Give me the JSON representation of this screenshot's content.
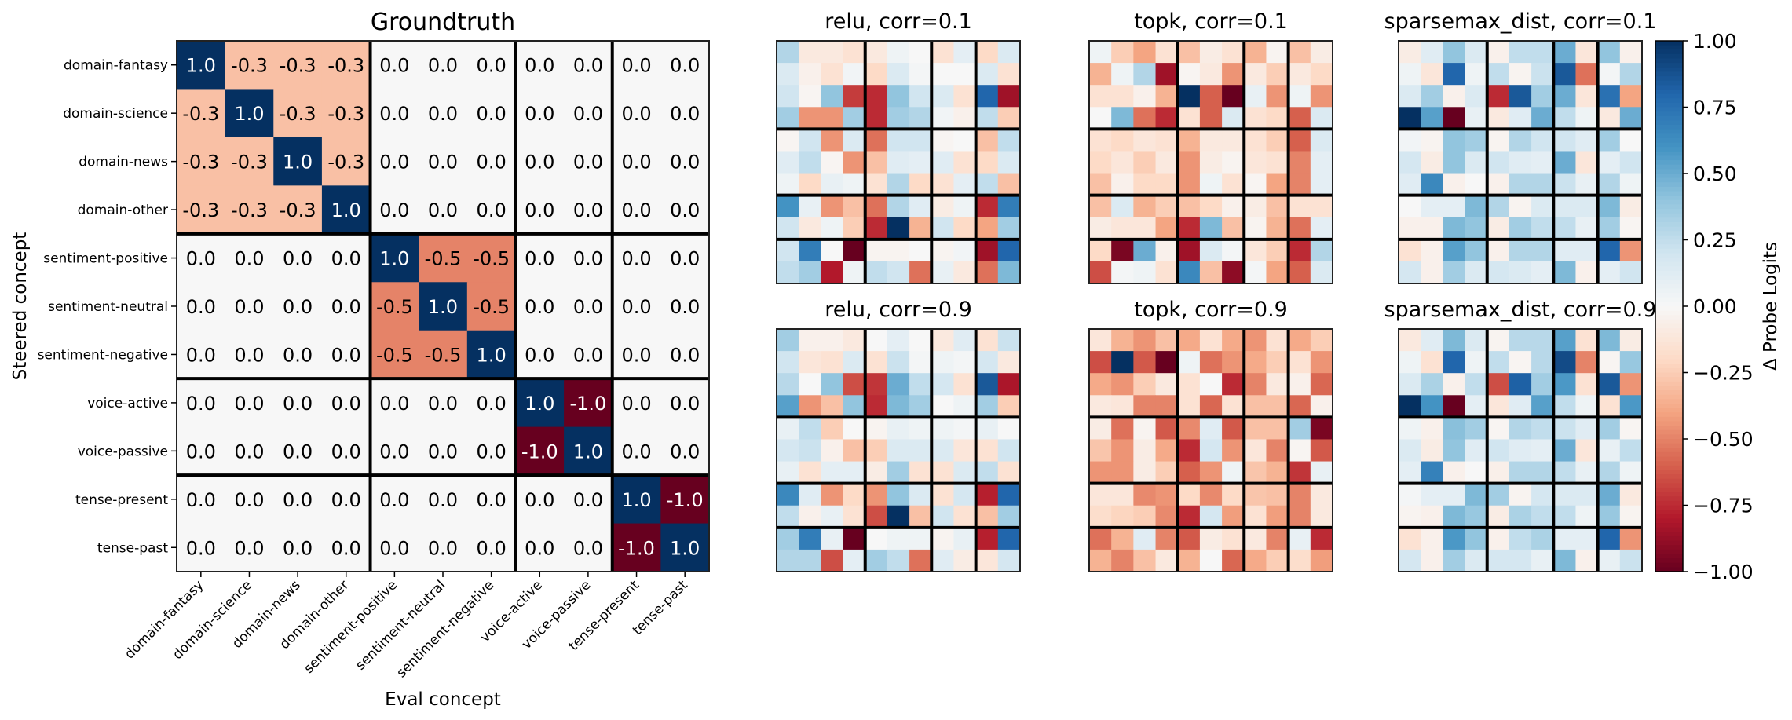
{
  "chart_data": {
    "type": "heatmap",
    "colormap": "RdBu",
    "value_range": [
      -1.0,
      1.0
    ],
    "concepts": [
      "domain-fantasy",
      "domain-science",
      "domain-news",
      "domain-other",
      "sentiment-positive",
      "sentiment-neutral",
      "sentiment-negative",
      "voice-active",
      "voice-passive",
      "tense-present",
      "tense-past"
    ],
    "group_boundaries_after": [
      3,
      6,
      8
    ],
    "groundtruth": {
      "title": "Groundtruth",
      "xlabel": "Eval concept",
      "ylabel": "Steered concept",
      "values": [
        [
          1.0,
          -0.3,
          -0.3,
          -0.3,
          0.0,
          0.0,
          0.0,
          0.0,
          0.0,
          0.0,
          0.0
        ],
        [
          -0.3,
          1.0,
          -0.3,
          -0.3,
          0.0,
          0.0,
          0.0,
          0.0,
          0.0,
          0.0,
          0.0
        ],
        [
          -0.3,
          -0.3,
          1.0,
          -0.3,
          0.0,
          0.0,
          0.0,
          0.0,
          0.0,
          0.0,
          0.0
        ],
        [
          -0.3,
          -0.3,
          -0.3,
          1.0,
          0.0,
          0.0,
          0.0,
          0.0,
          0.0,
          0.0,
          0.0
        ],
        [
          0.0,
          0.0,
          0.0,
          0.0,
          1.0,
          -0.5,
          -0.5,
          0.0,
          0.0,
          0.0,
          0.0
        ],
        [
          0.0,
          0.0,
          0.0,
          0.0,
          -0.5,
          1.0,
          -0.5,
          0.0,
          0.0,
          0.0,
          0.0
        ],
        [
          0.0,
          0.0,
          0.0,
          0.0,
          -0.5,
          -0.5,
          1.0,
          0.0,
          0.0,
          0.0,
          0.0
        ],
        [
          0.0,
          0.0,
          0.0,
          0.0,
          0.0,
          0.0,
          0.0,
          1.0,
          -1.0,
          0.0,
          0.0
        ],
        [
          0.0,
          0.0,
          0.0,
          0.0,
          0.0,
          0.0,
          0.0,
          -1.0,
          1.0,
          0.0,
          0.0
        ],
        [
          0.0,
          0.0,
          0.0,
          0.0,
          0.0,
          0.0,
          0.0,
          0.0,
          0.0,
          1.0,
          -1.0
        ],
        [
          0.0,
          0.0,
          0.0,
          0.0,
          0.0,
          0.0,
          0.0,
          0.0,
          0.0,
          -1.0,
          1.0
        ]
      ]
    },
    "panels": [
      {
        "title": "relu, corr=0.1",
        "values": [
          [
            0.3,
            -0.1,
            -0.1,
            -0.15,
            -0.1,
            0.05,
            0.0,
            -0.15,
            0.1,
            -0.2,
            0.15
          ],
          [
            0.15,
            -0.05,
            -0.15,
            0.03,
            -0.2,
            0.15,
            0.02,
            0.0,
            0.0,
            0.15,
            -0.15
          ],
          [
            0.2,
            -0.02,
            0.4,
            -0.7,
            -0.75,
            0.4,
            0.2,
            0.15,
            -0.15,
            0.8,
            -0.85
          ],
          [
            0.35,
            -0.45,
            -0.45,
            0.35,
            -0.75,
            0.35,
            0.3,
            0.03,
            -0.05,
            0.25,
            -0.25
          ],
          [
            -0.02,
            0.2,
            -0.45,
            0.15,
            -0.55,
            0.2,
            0.2,
            -0.02,
            0.0,
            -0.3,
            0.25
          ],
          [
            0.12,
            0.25,
            -0.02,
            -0.45,
            -0.3,
            0.12,
            0.1,
            0.12,
            -0.15,
            -0.2,
            0.15
          ],
          [
            0.05,
            -0.2,
            0.08,
            0.05,
            -0.15,
            0.3,
            -0.2,
            -0.15,
            0.1,
            0.25,
            -0.3
          ],
          [
            0.6,
            0.08,
            -0.45,
            -0.3,
            -0.55,
            0.3,
            0.12,
            -0.08,
            0.05,
            -0.75,
            0.7
          ],
          [
            0.2,
            -0.1,
            0.05,
            -0.25,
            -0.75,
            1.0,
            -0.35,
            0.2,
            -0.2,
            -0.4,
            0.35
          ],
          [
            0.2,
            0.7,
            0.0,
            -1.0,
            -0.03,
            -0.03,
            0.0,
            -0.03,
            0.03,
            -0.85,
            0.8
          ],
          [
            0.25,
            0.35,
            -0.8,
            0.05,
            0.25,
            0.2,
            -0.55,
            0.08,
            -0.1,
            -0.55,
            0.45
          ]
        ]
      },
      {
        "title": "topk, corr=0.1",
        "values": [
          [
            0.05,
            -0.25,
            -0.4,
            -0.15,
            -0.3,
            -0.08,
            -0.15,
            -0.35,
            -0.03,
            -0.3,
            -0.08
          ],
          [
            -0.35,
            0.05,
            0.3,
            -0.85,
            -0.02,
            -0.1,
            -0.45,
            -0.1,
            -0.25,
            -0.1,
            -0.2
          ],
          [
            -0.15,
            -0.15,
            -0.05,
            -0.35,
            1.0,
            -0.6,
            -1.0,
            0.08,
            -0.45,
            0.05,
            -0.45
          ],
          [
            0.0,
            0.45,
            -0.55,
            -0.75,
            -0.15,
            -0.6,
            0.15,
            -0.15,
            -0.2,
            -0.6,
            0.15
          ],
          [
            -0.15,
            -0.2,
            -0.12,
            -0.15,
            -0.35,
            -0.1,
            -0.1,
            -0.15,
            -0.25,
            -0.6,
            0.15
          ],
          [
            -0.2,
            -0.12,
            -0.25,
            -0.1,
            -0.45,
            -0.08,
            -0.03,
            -0.12,
            -0.15,
            -0.5,
            0.1
          ],
          [
            -0.3,
            -0.05,
            -0.2,
            -0.2,
            -0.45,
            0.05,
            -0.15,
            -0.02,
            -0.4,
            -0.5,
            0.1
          ],
          [
            -0.3,
            0.15,
            -0.35,
            -0.25,
            -0.3,
            -0.2,
            -0.05,
            -0.08,
            -0.3,
            -0.15,
            -0.15
          ],
          [
            -0.08,
            -0.12,
            -0.12,
            -0.4,
            -0.75,
            0.45,
            -0.3,
            -0.03,
            -0.35,
            -0.55,
            0.1
          ],
          [
            -0.2,
            -0.95,
            0.5,
            -0.05,
            -0.85,
            0.15,
            0.02,
            -0.12,
            -0.25,
            -0.75,
            0.3
          ],
          [
            -0.65,
            0.02,
            0.05,
            -0.15,
            0.65,
            -0.3,
            -0.9,
            0.02,
            -0.4,
            -0.6,
            0.15
          ]
        ]
      },
      {
        "title": "sparsemax_dist, corr=0.1",
        "values": [
          [
            -0.08,
            0.12,
            0.4,
            0.15,
            -0.05,
            0.25,
            0.25,
            0.5,
            -0.12,
            0.4,
            -0.05
          ],
          [
            0.05,
            -0.12,
            0.8,
            0.05,
            0.25,
            -0.03,
            0.22,
            0.85,
            -0.55,
            0.02,
            0.3
          ],
          [
            0.15,
            0.35,
            -0.05,
            0.15,
            -0.75,
            0.85,
            0.35,
            0.5,
            -0.12,
            0.75,
            -0.4
          ],
          [
            1.0,
            0.55,
            -1.0,
            0.08,
            -0.1,
            0.12,
            0.5,
            0.25,
            0.05,
            -0.1,
            0.5
          ],
          [
            0.03,
            -0.03,
            0.4,
            0.35,
            -0.03,
            0.3,
            0.2,
            0.2,
            0.12,
            0.35,
            0.0
          ],
          [
            0.18,
            -0.08,
            0.4,
            0.15,
            0.2,
            0.12,
            0.1,
            0.5,
            -0.12,
            0.1,
            0.2
          ],
          [
            0.12,
            0.65,
            -0.05,
            0.0,
            -0.05,
            0.3,
            0.3,
            0.22,
            0.08,
            0.3,
            0.05
          ],
          [
            0.0,
            0.1,
            0.1,
            0.45,
            0.3,
            -0.03,
            0.15,
            0.15,
            0.15,
            0.45,
            -0.08
          ],
          [
            -0.05,
            -0.05,
            0.45,
            0.4,
            -0.08,
            0.35,
            0.25,
            0.25,
            0.08,
            0.35,
            -0.02
          ],
          [
            -0.15,
            -0.05,
            0.55,
            0.4,
            -0.05,
            0.3,
            0.3,
            0.12,
            0.12,
            0.8,
            -0.45
          ],
          [
            0.18,
            -0.05,
            0.35,
            0.15,
            0.18,
            0.15,
            0.1,
            0.45,
            -0.05,
            0.1,
            0.2
          ]
        ]
      },
      {
        "title": "relu, corr=0.9",
        "values": [
          [
            0.35,
            -0.05,
            -0.05,
            -0.1,
            0.0,
            0.1,
            0.0,
            -0.1,
            0.12,
            -0.15,
            0.22
          ],
          [
            0.2,
            -0.12,
            -0.15,
            0.15,
            -0.15,
            0.22,
            0.02,
            0.05,
            0.02,
            0.18,
            -0.1
          ],
          [
            0.28,
            0.0,
            0.4,
            -0.65,
            -0.72,
            0.5,
            0.25,
            0.18,
            -0.15,
            0.85,
            -0.82
          ],
          [
            0.55,
            -0.45,
            -0.3,
            0.4,
            -0.75,
            0.45,
            0.35,
            0.0,
            0.05,
            0.35,
            -0.25
          ],
          [
            0.08,
            0.25,
            -0.25,
            0.0,
            -0.03,
            0.08,
            0.05,
            0.05,
            0.02,
            0.08,
            0.0
          ],
          [
            0.18,
            0.22,
            -0.05,
            -0.3,
            -0.25,
            0.15,
            0.15,
            0.15,
            -0.12,
            -0.15,
            0.2
          ],
          [
            0.08,
            -0.15,
            0.1,
            0.1,
            -0.08,
            0.35,
            -0.15,
            -0.15,
            0.15,
            0.25,
            -0.15
          ],
          [
            0.65,
            0.12,
            -0.45,
            -0.2,
            -0.45,
            0.4,
            0.15,
            -0.15,
            0.18,
            -0.78,
            0.8
          ],
          [
            0.25,
            -0.05,
            0.08,
            -0.15,
            -0.65,
            1.0,
            -0.3,
            0.2,
            -0.15,
            -0.3,
            0.35
          ],
          [
            0.35,
            0.7,
            0.08,
            -1.0,
            0.0,
            0.05,
            0.05,
            -0.03,
            0.08,
            -0.78,
            0.8
          ],
          [
            0.3,
            0.3,
            -0.65,
            0.1,
            0.35,
            0.25,
            -0.55,
            0.12,
            -0.08,
            -0.12,
            0.18
          ]
        ]
      },
      {
        "title": "topk, corr=0.9",
        "values": [
          [
            -0.12,
            -0.35,
            -0.45,
            -0.3,
            -0.38,
            -0.15,
            -0.38,
            -0.45,
            -0.15,
            -0.38,
            -0.25
          ],
          [
            -0.65,
            1.0,
            -0.62,
            -1.0,
            0.05,
            -0.55,
            -0.45,
            -0.38,
            -0.25,
            -0.15,
            -0.45
          ],
          [
            -0.38,
            -0.45,
            -0.25,
            -0.1,
            -0.15,
            0.0,
            -0.75,
            -0.5,
            -0.1,
            -0.05,
            -0.58
          ],
          [
            -0.1,
            -0.12,
            -0.5,
            -0.5,
            -0.15,
            -0.58,
            -0.15,
            -0.3,
            -0.3,
            -0.58,
            -0.05
          ],
          [
            -0.08,
            -0.55,
            -0.03,
            -0.62,
            -0.48,
            0.12,
            -0.62,
            -0.3,
            -0.3,
            0.35,
            -0.95
          ],
          [
            -0.28,
            -0.45,
            -0.08,
            -0.38,
            -0.75,
            0.18,
            -0.45,
            -0.12,
            -0.5,
            -0.02,
            -0.62
          ],
          [
            -0.45,
            -0.45,
            -0.08,
            -0.25,
            -0.6,
            -0.45,
            0.05,
            -0.28,
            -0.35,
            -0.72,
            0.08
          ],
          [
            -0.12,
            -0.12,
            -0.48,
            -0.45,
            -0.2,
            -0.48,
            -0.2,
            -0.28,
            -0.3,
            -0.5,
            -0.1
          ],
          [
            -0.18,
            -0.22,
            -0.25,
            -0.48,
            -0.75,
            0.18,
            -0.42,
            -0.15,
            -0.42,
            -0.5,
            -0.1
          ],
          [
            -0.55,
            -0.35,
            0.12,
            -0.5,
            -0.62,
            -0.08,
            -0.15,
            -0.1,
            -0.5,
            0.08,
            -0.75
          ],
          [
            -0.35,
            -0.5,
            -0.3,
            -0.1,
            -0.35,
            0.0,
            -0.58,
            -0.38,
            -0.25,
            -0.18,
            -0.42
          ]
        ]
      },
      {
        "title": "sparsemax_dist, corr=0.9",
        "values": [
          [
            -0.1,
            0.12,
            0.45,
            0.15,
            -0.03,
            0.28,
            0.28,
            0.55,
            -0.15,
            0.45,
            -0.08
          ],
          [
            0.05,
            -0.15,
            0.8,
            0.05,
            0.25,
            -0.02,
            0.28,
            0.9,
            -0.5,
            -0.02,
            0.38
          ],
          [
            0.15,
            0.32,
            -0.05,
            0.25,
            -0.65,
            0.82,
            0.35,
            0.58,
            -0.15,
            0.85,
            -0.45
          ],
          [
            1.0,
            0.6,
            -1.0,
            0.1,
            -0.12,
            0.12,
            0.55,
            0.25,
            0.05,
            -0.15,
            0.58
          ],
          [
            0.05,
            -0.05,
            0.42,
            0.35,
            -0.02,
            0.3,
            0.25,
            0.22,
            0.12,
            0.35,
            -0.02
          ],
          [
            0.15,
            -0.08,
            0.4,
            0.12,
            0.2,
            0.12,
            0.1,
            0.5,
            -0.12,
            0.08,
            0.25
          ],
          [
            0.1,
            0.68,
            -0.05,
            0.0,
            -0.06,
            0.3,
            0.3,
            0.25,
            0.08,
            0.3,
            0.05
          ],
          [
            0.02,
            0.1,
            0.1,
            0.45,
            0.35,
            -0.03,
            0.18,
            0.15,
            0.15,
            0.5,
            -0.1
          ],
          [
            -0.03,
            -0.05,
            0.45,
            0.38,
            -0.08,
            0.32,
            0.25,
            0.25,
            0.05,
            0.38,
            -0.03
          ],
          [
            -0.15,
            -0.05,
            0.58,
            0.4,
            -0.05,
            0.25,
            0.32,
            0.1,
            0.1,
            0.8,
            -0.45
          ],
          [
            0.18,
            -0.05,
            0.35,
            0.15,
            0.18,
            0.18,
            0.08,
            0.45,
            -0.05,
            0.08,
            0.22
          ]
        ]
      }
    ],
    "colorbar": {
      "label": "Δ Probe Logits",
      "ticks": [
        1.0,
        0.75,
        0.5,
        0.25,
        0.0,
        -0.25,
        -0.5,
        -0.75,
        -1.0
      ],
      "tick_labels": [
        "1.00",
        "0.75",
        "0.50",
        "0.25",
        "0.00",
        "−0.25",
        "−0.50",
        "−0.75",
        "−1.00"
      ]
    }
  }
}
